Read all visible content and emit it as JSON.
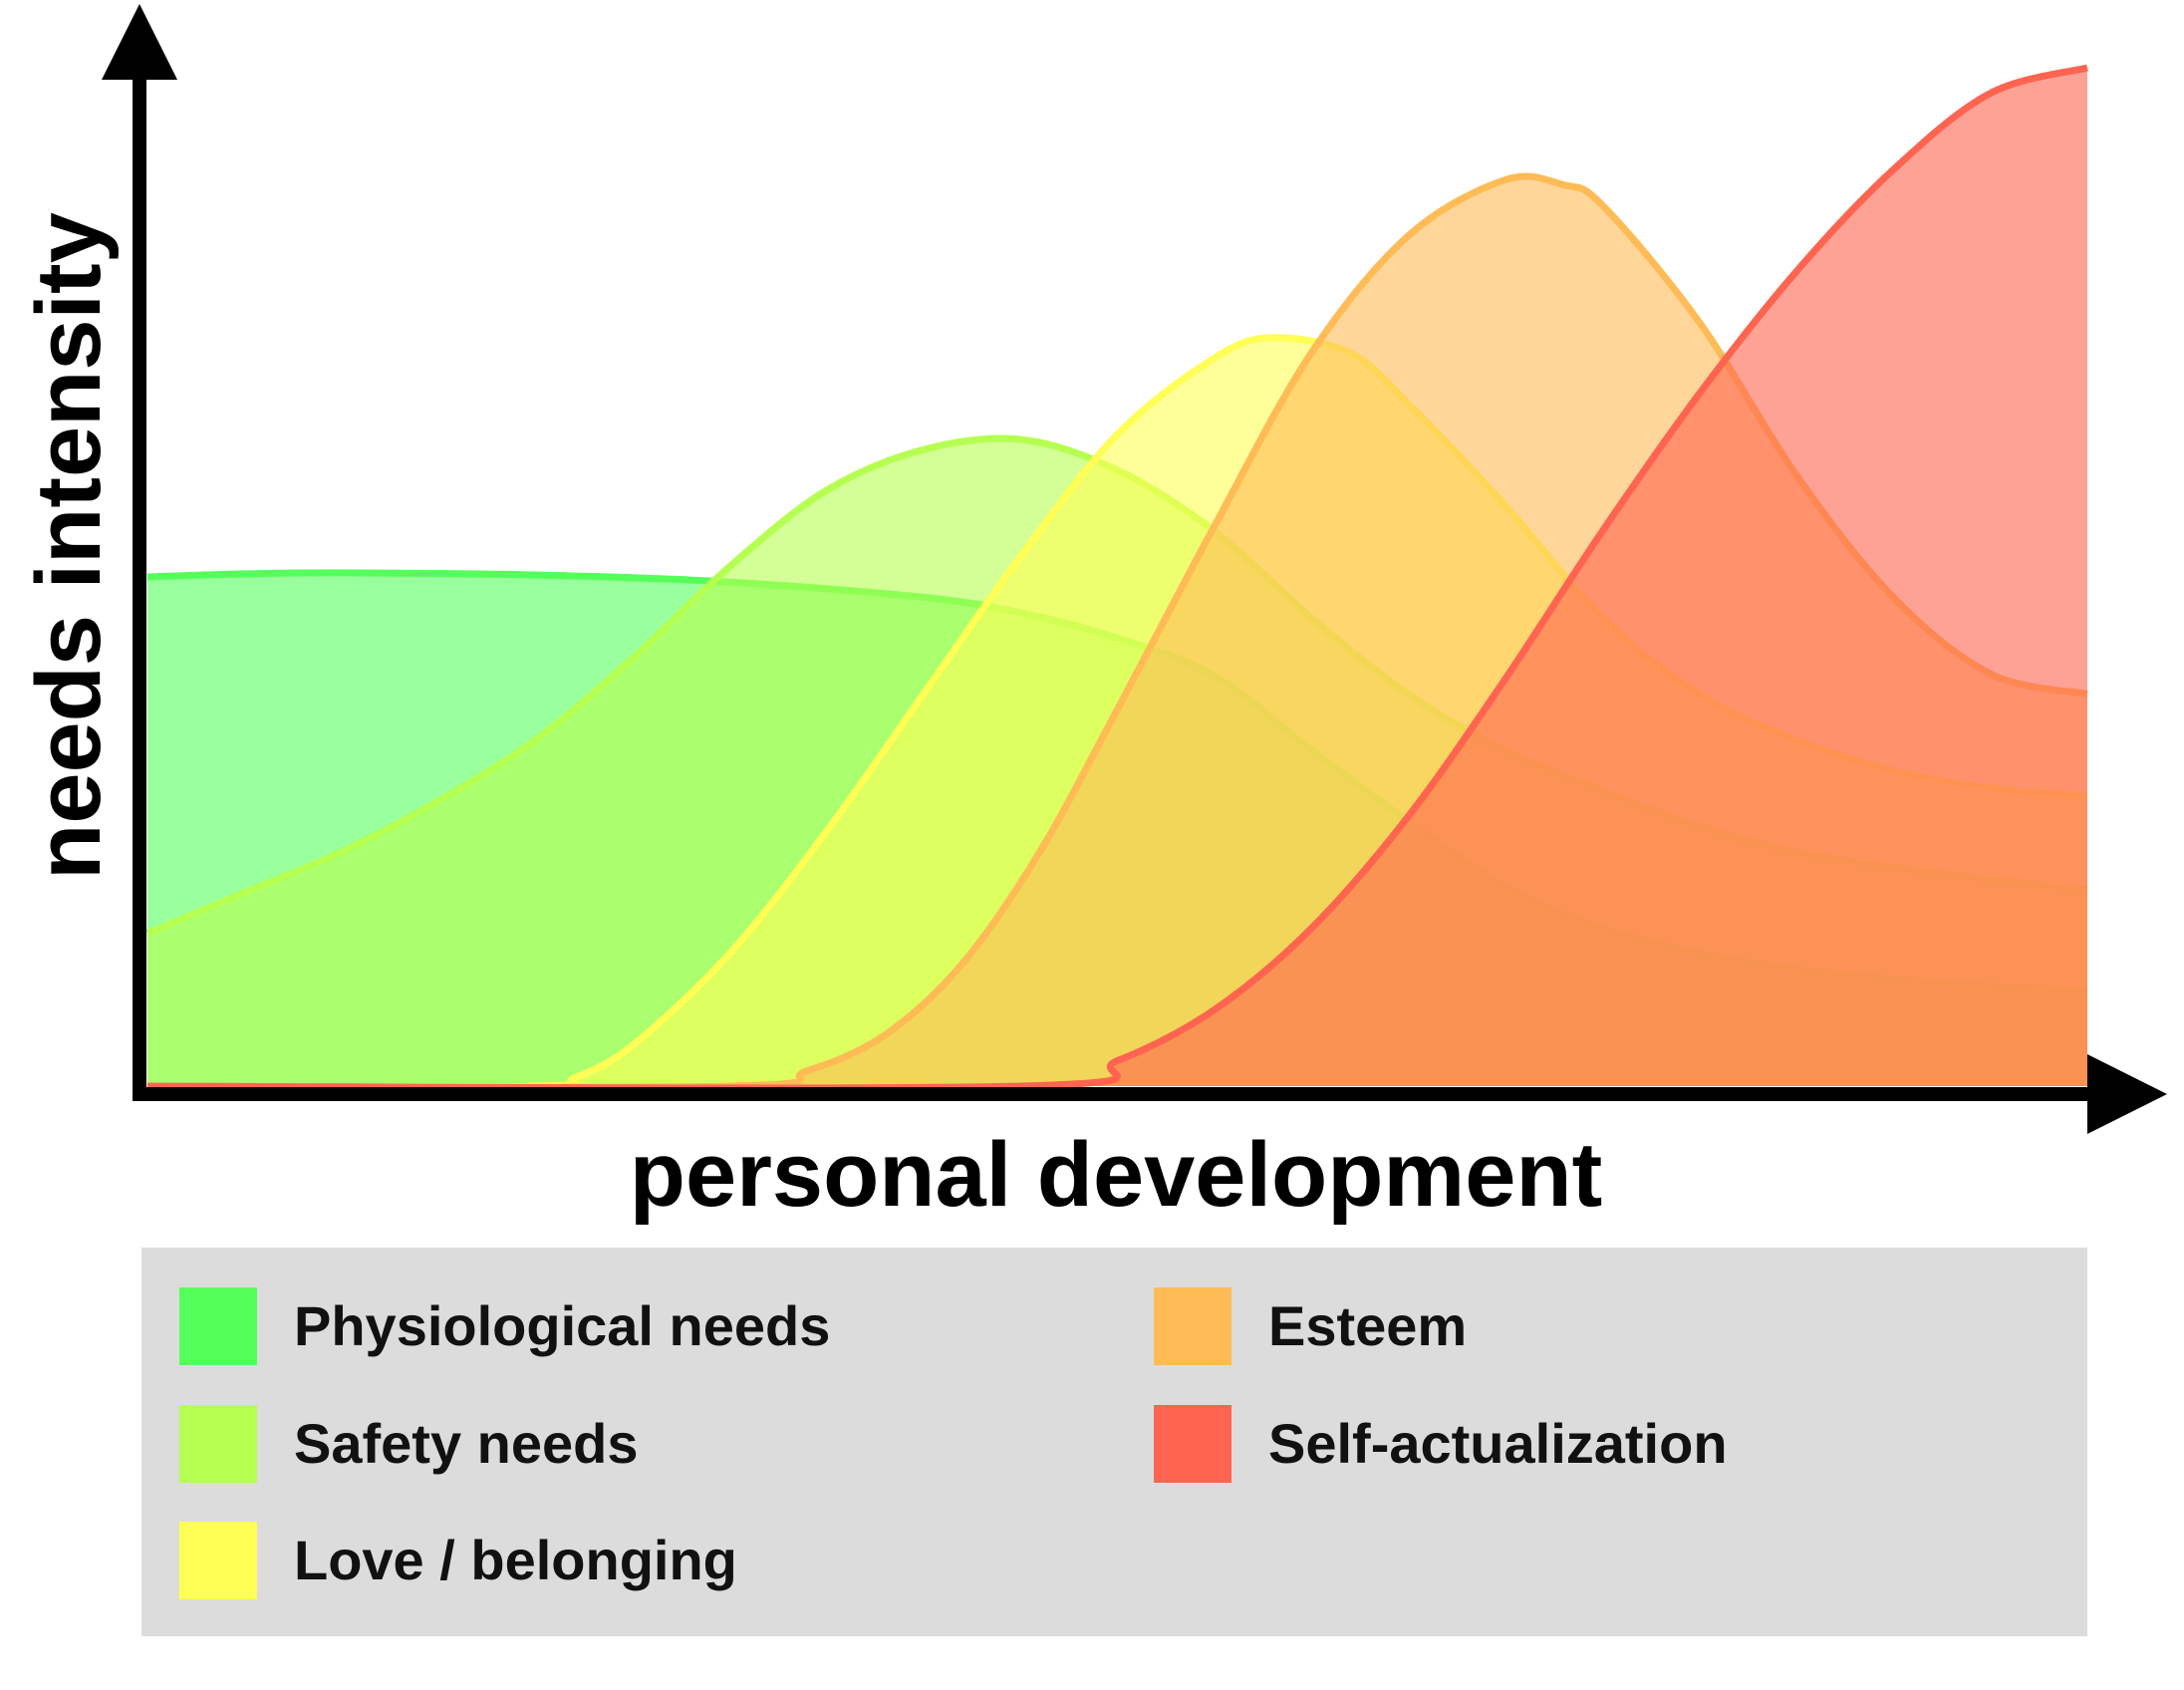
{
  "chart_data": {
    "type": "area",
    "title": "",
    "xlabel": "personal development",
    "ylabel": "needs intensity",
    "xlim": [
      0,
      100
    ],
    "ylim": [
      0,
      100
    ],
    "grid": false,
    "legend_placement": "bottom",
    "series": [
      {
        "name": "Physiological needs",
        "color": "#55ff5a",
        "x": [
          0,
          5,
          10,
          20,
          30,
          40,
          45,
          50,
          55,
          60,
          65,
          70,
          75,
          80,
          85,
          90,
          95,
          100
        ],
        "values": [
          50,
          50.3,
          50.4,
          50.2,
          49.5,
          48,
          46.5,
          44,
          40.3,
          33,
          26,
          19.6,
          15.5,
          13,
          11.5,
          10.5,
          9.8,
          9.3
        ]
      },
      {
        "name": "Safety needs",
        "color": "#b5ff50",
        "x": [
          0,
          5,
          10,
          15,
          20,
          25,
          30,
          35,
          40,
          45,
          50,
          55,
          60,
          65,
          70,
          75,
          80,
          85,
          90,
          95,
          100
        ],
        "values": [
          15,
          19,
          23,
          28,
          34,
          42,
          51,
          58.5,
          62.5,
          63.5,
          60.5,
          54.5,
          46,
          38.5,
          33,
          29,
          25.5,
          23,
          21.5,
          20.3,
          19.3
        ]
      },
      {
        "name": "Love / belonging",
        "color": "#ffff55",
        "x": [
          0,
          20,
          22,
          25,
          30,
          35,
          40,
          45,
          50,
          55,
          58,
          62,
          65,
          70,
          75,
          80,
          85,
          90,
          95,
          100
        ],
        "values": [
          0,
          0,
          0.8,
          4,
          13,
          25,
          38.5,
          52,
          64,
          71.5,
          73.5,
          72,
          67,
          57,
          46,
          38.5,
          34,
          31,
          29.3,
          28.5
        ]
      },
      {
        "name": "Esteem",
        "color": "#ffbb55",
        "x": [
          0,
          30,
          34,
          38,
          42,
          46,
          50,
          55,
          60,
          65,
          70,
          73,
          75,
          80,
          85,
          90,
          95,
          100
        ],
        "values": [
          0,
          0,
          1.5,
          5,
          12,
          23,
          37,
          55,
          72,
          83.5,
          89,
          88.5,
          86.5,
          75,
          60,
          48,
          40.5,
          38.5
        ]
      },
      {
        "name": "Self-actualization",
        "color": "#ff6450",
        "x": [
          0,
          45,
          50,
          55,
          60,
          65,
          70,
          75,
          80,
          85,
          90,
          95,
          100
        ],
        "values": [
          0,
          0,
          2.5,
          7.5,
          15.5,
          26.5,
          40,
          54.5,
          68,
          80,
          90,
          97.5,
          100
        ]
      }
    ]
  },
  "legend": {
    "items": [
      {
        "label": "Physiological needs",
        "color": "#55ff5a"
      },
      {
        "label": "Safety needs",
        "color": "#b5ff50"
      },
      {
        "label": "Love / belonging",
        "color": "#ffff55"
      },
      {
        "label": "Esteem",
        "color": "#ffbb55"
      },
      {
        "label": "Self-actualization",
        "color": "#ff6450"
      }
    ]
  }
}
